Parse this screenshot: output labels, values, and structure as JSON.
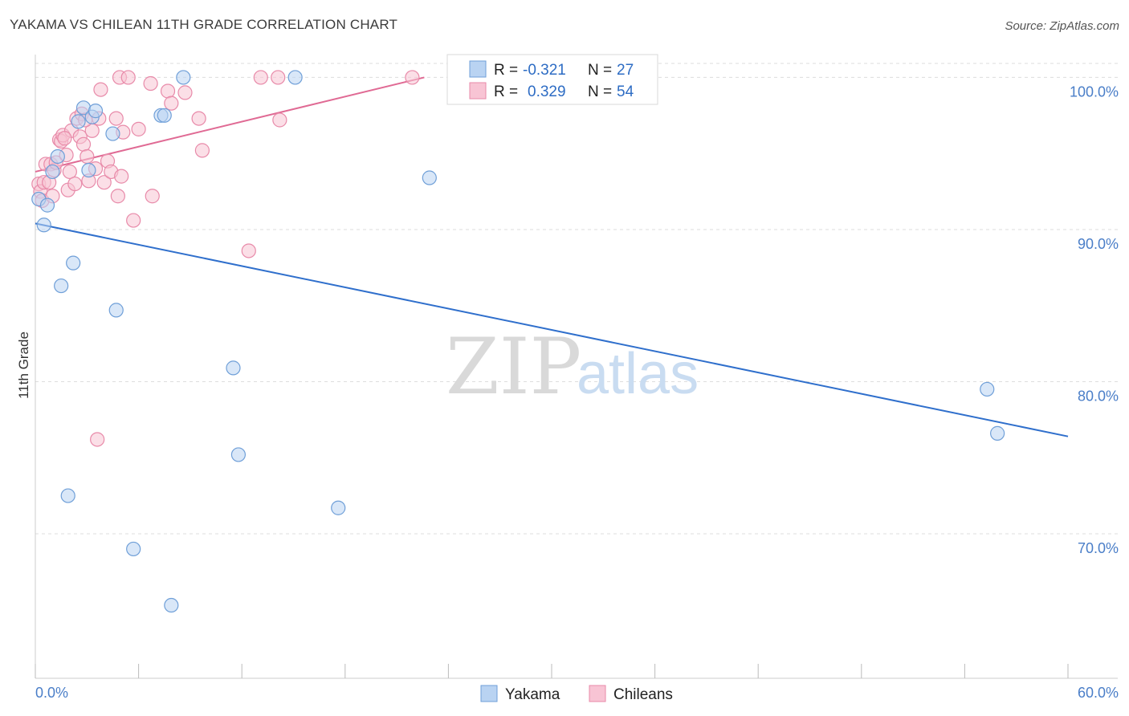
{
  "title": "YAKAMA VS CHILEAN 11TH GRADE CORRELATION CHART",
  "source": "Source: ZipAtlas.com",
  "watermark": {
    "zip": "ZIP",
    "atlas": "atlas"
  },
  "colors": {
    "yakama_fill": "#b9d3f2",
    "yakama_stroke": "#6f9fd8",
    "yakama_line": "#2f6fcc",
    "chilean_fill": "#f8c4d4",
    "chilean_stroke": "#e88aa9",
    "chilean_line": "#e06a94",
    "tick_label": "#4a7ec8",
    "grid": "#dddddd"
  },
  "legend": {
    "r_label": "R =",
    "n_label": "N =",
    "yakama": {
      "r": "-0.321",
      "n": "27"
    },
    "chilean": {
      "r": "0.329",
      "n": "54"
    }
  },
  "chart_data": {
    "type": "scatter",
    "title": "YAKAMA VS CHILEAN 11TH GRADE CORRELATION CHART",
    "xlabel": "",
    "ylabel": "11th Grade",
    "xlim": [
      0,
      60
    ],
    "ylim": [
      60.5,
      101.5
    ],
    "x_tick_labels": [
      "0.0%",
      "60.0%"
    ],
    "y_ticks": [
      70,
      80,
      90,
      100
    ],
    "y_tick_labels": [
      "70.0%",
      "80.0%",
      "90.0%",
      "100.0%"
    ],
    "grid": true,
    "legend_position": "top-center",
    "series": [
      {
        "name": "Yakama",
        "trend": {
          "x0": 0,
          "y0": 90.4,
          "x1": 60,
          "y1": 76.4
        },
        "points": [
          {
            "x": 0.2,
            "y": 92.0
          },
          {
            "x": 0.5,
            "y": 90.3
          },
          {
            "x": 0.7,
            "y": 91.6
          },
          {
            "x": 1.0,
            "y": 93.8
          },
          {
            "x": 1.3,
            "y": 94.8
          },
          {
            "x": 1.5,
            "y": 86.3
          },
          {
            "x": 1.9,
            "y": 72.5
          },
          {
            "x": 2.2,
            "y": 87.8
          },
          {
            "x": 2.5,
            "y": 97.1
          },
          {
            "x": 2.8,
            "y": 98.0
          },
          {
            "x": 3.1,
            "y": 93.9
          },
          {
            "x": 3.3,
            "y": 97.4
          },
          {
            "x": 3.5,
            "y": 97.8
          },
          {
            "x": 4.5,
            "y": 96.3
          },
          {
            "x": 4.7,
            "y": 84.7
          },
          {
            "x": 5.7,
            "y": 69.0
          },
          {
            "x": 7.3,
            "y": 97.5
          },
          {
            "x": 7.5,
            "y": 97.5
          },
          {
            "x": 7.9,
            "y": 65.3
          },
          {
            "x": 8.6,
            "y": 100.0
          },
          {
            "x": 11.5,
            "y": 80.9
          },
          {
            "x": 11.8,
            "y": 75.2
          },
          {
            "x": 15.1,
            "y": 100.0
          },
          {
            "x": 17.6,
            "y": 71.7
          },
          {
            "x": 22.9,
            "y": 93.4
          },
          {
            "x": 55.3,
            "y": 79.5
          },
          {
            "x": 55.9,
            "y": 76.6
          }
        ]
      },
      {
        "name": "Chileans",
        "trend": {
          "x0": 0,
          "y0": 93.8,
          "x1": 22.6,
          "y1": 100.0
        },
        "points": [
          {
            "x": 0.2,
            "y": 93.0
          },
          {
            "x": 0.3,
            "y": 92.5
          },
          {
            "x": 0.4,
            "y": 91.9
          },
          {
            "x": 0.5,
            "y": 93.1
          },
          {
            "x": 0.6,
            "y": 94.3
          },
          {
            "x": 0.8,
            "y": 93.1
          },
          {
            "x": 0.9,
            "y": 94.3
          },
          {
            "x": 1.0,
            "y": 92.2
          },
          {
            "x": 1.1,
            "y": 93.9
          },
          {
            "x": 1.2,
            "y": 94.4
          },
          {
            "x": 1.4,
            "y": 95.9
          },
          {
            "x": 1.5,
            "y": 95.8
          },
          {
            "x": 1.6,
            "y": 96.2
          },
          {
            "x": 1.8,
            "y": 94.9
          },
          {
            "x": 1.9,
            "y": 92.6
          },
          {
            "x": 2.0,
            "y": 93.8
          },
          {
            "x": 2.1,
            "y": 96.5
          },
          {
            "x": 2.3,
            "y": 93.0
          },
          {
            "x": 2.4,
            "y": 97.3
          },
          {
            "x": 2.6,
            "y": 96.1
          },
          {
            "x": 2.7,
            "y": 97.6
          },
          {
            "x": 2.8,
            "y": 95.6
          },
          {
            "x": 3.0,
            "y": 94.8
          },
          {
            "x": 3.1,
            "y": 93.2
          },
          {
            "x": 3.3,
            "y": 96.5
          },
          {
            "x": 3.5,
            "y": 94.0
          },
          {
            "x": 3.7,
            "y": 97.3
          },
          {
            "x": 3.8,
            "y": 99.2
          },
          {
            "x": 4.0,
            "y": 93.1
          },
          {
            "x": 4.2,
            "y": 94.5
          },
          {
            "x": 4.4,
            "y": 93.8
          },
          {
            "x": 4.7,
            "y": 97.3
          },
          {
            "x": 4.8,
            "y": 92.2
          },
          {
            "x": 4.9,
            "y": 100.0
          },
          {
            "x": 5.0,
            "y": 93.5
          },
          {
            "x": 5.1,
            "y": 96.4
          },
          {
            "x": 5.4,
            "y": 100.0
          },
          {
            "x": 5.7,
            "y": 90.6
          },
          {
            "x": 6.0,
            "y": 96.6
          },
          {
            "x": 6.7,
            "y": 99.6
          },
          {
            "x": 6.8,
            "y": 92.2
          },
          {
            "x": 7.7,
            "y": 99.1
          },
          {
            "x": 7.9,
            "y": 98.3
          },
          {
            "x": 8.7,
            "y": 99.0
          },
          {
            "x": 9.5,
            "y": 97.3
          },
          {
            "x": 9.7,
            "y": 95.2
          },
          {
            "x": 3.6,
            "y": 76.2
          },
          {
            "x": 12.4,
            "y": 88.6
          },
          {
            "x": 13.1,
            "y": 100.0
          },
          {
            "x": 14.1,
            "y": 100.0
          },
          {
            "x": 14.2,
            "y": 97.2
          },
          {
            "x": 21.9,
            "y": 100.0
          },
          {
            "x": 1.7,
            "y": 96.0
          },
          {
            "x": 2.9,
            "y": 97.2
          }
        ]
      }
    ]
  }
}
